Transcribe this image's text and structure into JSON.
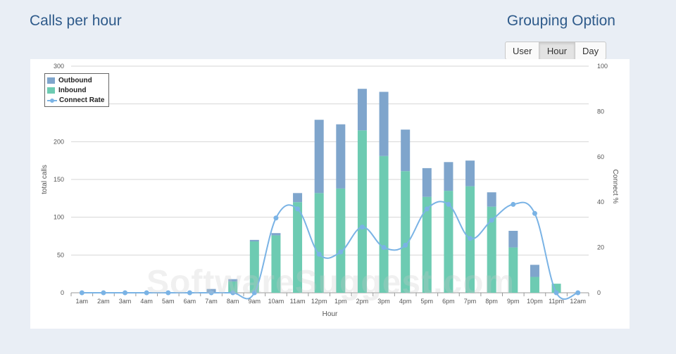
{
  "header": {
    "title": "Calls per hour"
  },
  "grouping": {
    "title": "Grouping Option",
    "options": [
      "User",
      "Hour",
      "Day"
    ],
    "selected": "Hour"
  },
  "watermark": "SoftwareSuggest.com",
  "colors": {
    "outbound": "#7fa5cc",
    "inbound": "#6dcbb2",
    "connect_rate": "#7ab3e5",
    "grid": "#d6d6d6"
  },
  "chart_data": {
    "type": "bar",
    "stacked": true,
    "categories": [
      "1am",
      "2am",
      "3am",
      "4am",
      "5am",
      "6am",
      "7am",
      "8am",
      "9am",
      "10am",
      "11am",
      "12pm",
      "1pm",
      "2pm",
      "3pm",
      "4pm",
      "5pm",
      "6pm",
      "7pm",
      "8pm",
      "9pm",
      "10pm",
      "11pm",
      "12am"
    ],
    "xlabel": "Hour",
    "ylabel": "total calls",
    "y2label": "Connect %",
    "ylim": [
      0,
      300
    ],
    "y2lim": [
      0,
      100
    ],
    "yticks": [
      0,
      50,
      100,
      150,
      200,
      250,
      300
    ],
    "y2ticks": [
      0,
      20,
      40,
      60,
      80,
      100
    ],
    "grid": true,
    "legend_position": "top-left",
    "series": [
      {
        "name": "Outbound",
        "type": "bar",
        "values": [
          0,
          0,
          0,
          0,
          0,
          0,
          5,
          3,
          2,
          3,
          12,
          97,
          85,
          55,
          85,
          55,
          38,
          38,
          34,
          19,
          22,
          16,
          0,
          0
        ]
      },
      {
        "name": "Inbound",
        "type": "bar",
        "values": [
          0,
          0,
          0,
          0,
          0,
          0,
          0,
          15,
          68,
          76,
          120,
          132,
          138,
          215,
          181,
          161,
          127,
          135,
          141,
          114,
          60,
          21,
          12,
          0
        ]
      },
      {
        "name": "Connect Rate",
        "type": "line",
        "axis": "right",
        "values": [
          0,
          0,
          0,
          0,
          0,
          0,
          0,
          0,
          0,
          33,
          37,
          17,
          18,
          29,
          20,
          21,
          37,
          39,
          24,
          32,
          39,
          35,
          0,
          0
        ]
      }
    ]
  }
}
